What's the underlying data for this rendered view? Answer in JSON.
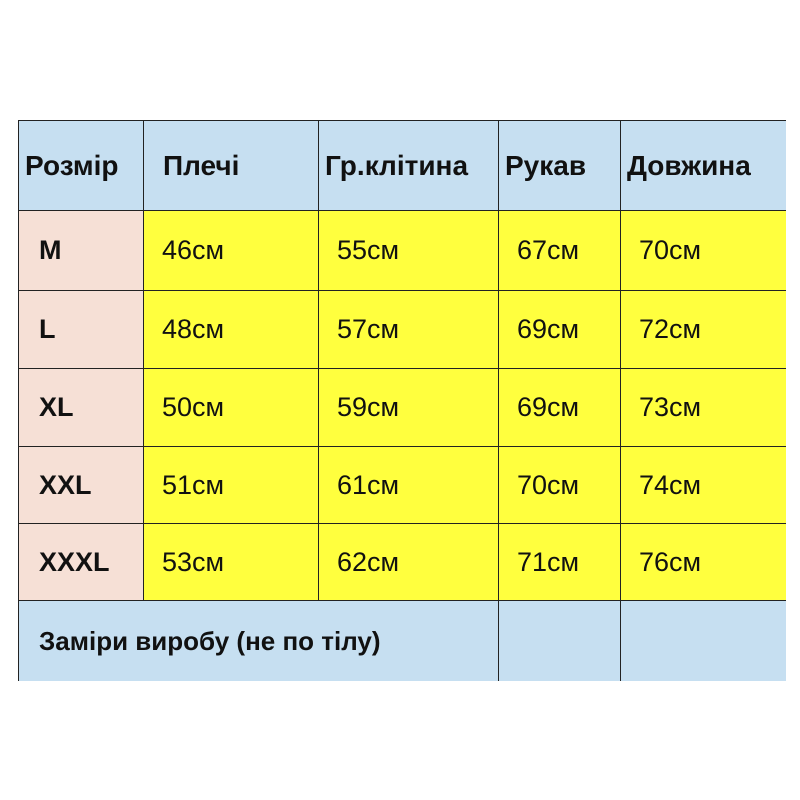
{
  "headers": [
    "Розмір",
    "Плечі",
    "Гр.клітина",
    "Рукав",
    "Довжина"
  ],
  "rows": [
    {
      "size": "M",
      "values": [
        "46см",
        "55см",
        "67см",
        "70см"
      ]
    },
    {
      "size": "L",
      "values": [
        "48см",
        "57см",
        "69см",
        "72см"
      ]
    },
    {
      "size": "XL",
      "values": [
        "50см",
        "59см",
        "69см",
        "73см"
      ]
    },
    {
      "size": "XXL",
      "values": [
        "51см",
        "61см",
        "70см",
        "74см"
      ]
    },
    {
      "size": "XXXL",
      "values": [
        "53см",
        "62см",
        "71см",
        "76см"
      ]
    }
  ],
  "footer": "Заміри виробу (не по тілу)",
  "colors": {
    "header": "#c6dff1",
    "size_cell": "#f6e0d6",
    "value_cell": "#ffff3e"
  }
}
